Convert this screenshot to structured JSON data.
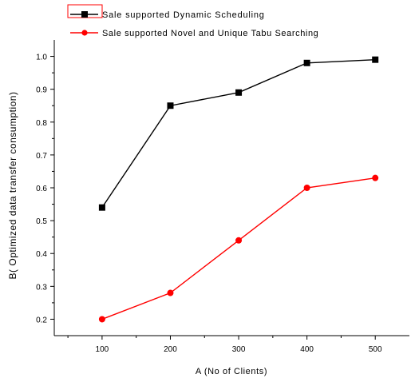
{
  "chart_data": {
    "type": "line",
    "xlabel": "A (No of Clients)",
    "ylabel": "B( Optimized data transfer consumption)",
    "x": [
      100,
      200,
      300,
      400,
      500
    ],
    "x_ticks": [
      "100",
      "200",
      "300",
      "400",
      "500"
    ],
    "y_ticks": [
      "0.2",
      "0.3",
      "0.4",
      "0.5",
      "0.6",
      "0.7",
      "0.8",
      "0.9",
      "1.0"
    ],
    "xlim": [
      30,
      550
    ],
    "ylim": [
      0.15,
      1.05
    ],
    "grid": false,
    "legend_position": "top",
    "series": [
      {
        "name": "Sale supported Dynamic Scheduling",
        "color": "#000000",
        "marker": "square",
        "values": [
          0.54,
          0.85,
          0.89,
          0.98,
          0.99
        ]
      },
      {
        "name": "Sale supported Novel and Unique Tabu Searching",
        "color": "#ff0000",
        "marker": "circle",
        "values": [
          0.2,
          0.28,
          0.44,
          0.6,
          0.63
        ]
      }
    ]
  }
}
